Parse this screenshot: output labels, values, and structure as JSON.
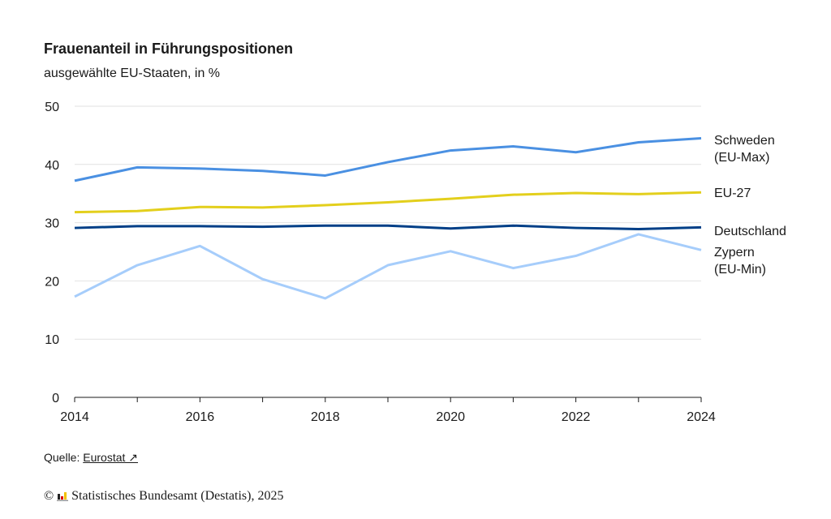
{
  "chart_data": {
    "type": "line",
    "title": "Frauenanteil in Führungspositionen",
    "subtitle": "ausgewählte EU-Staaten, in %",
    "x": [
      2014,
      2015,
      2016,
      2017,
      2018,
      2019,
      2020,
      2021,
      2022,
      2023,
      2024
    ],
    "xticks": [
      "2014",
      "2016",
      "2018",
      "2020",
      "2022",
      "2024"
    ],
    "yticks": [
      "0",
      "10",
      "20",
      "30",
      "40",
      "50"
    ],
    "ylim": [
      0,
      50
    ],
    "grid": true,
    "series": [
      {
        "name": "Schweden (EU-Max)",
        "label_lines": [
          "Schweden",
          "(EU-Max)"
        ],
        "color": "#4a90e2",
        "values": [
          37.2,
          39.5,
          39.3,
          38.9,
          38.1,
          40.4,
          42.4,
          43.1,
          42.1,
          43.8,
          44.5
        ]
      },
      {
        "name": "EU-27",
        "label_lines": [
          "EU-27"
        ],
        "color": "#e3cf1c",
        "values": [
          31.8,
          32.0,
          32.7,
          32.6,
          33.0,
          33.5,
          34.1,
          34.8,
          35.1,
          34.9,
          35.2
        ]
      },
      {
        "name": "Deutschland",
        "label_lines": [
          "Deutschland"
        ],
        "color": "#003f87",
        "values": [
          29.1,
          29.4,
          29.4,
          29.3,
          29.5,
          29.5,
          29.0,
          29.5,
          29.1,
          28.9,
          29.2
        ]
      },
      {
        "name": "Zypern (EU-Min)",
        "label_lines": [
          "Zypern",
          "(EU-Min)"
        ],
        "color": "#a6cdfb",
        "values": [
          17.3,
          22.7,
          26.0,
          20.3,
          17.0,
          22.7,
          25.1,
          22.2,
          24.3,
          28.0,
          25.3
        ]
      }
    ]
  },
  "footer": {
    "source_label": "Quelle:",
    "source_link": "Eurostat ↗",
    "copyright": "© ",
    "publisher": "Statistisches Bundesamt (Destatis), 2025"
  }
}
